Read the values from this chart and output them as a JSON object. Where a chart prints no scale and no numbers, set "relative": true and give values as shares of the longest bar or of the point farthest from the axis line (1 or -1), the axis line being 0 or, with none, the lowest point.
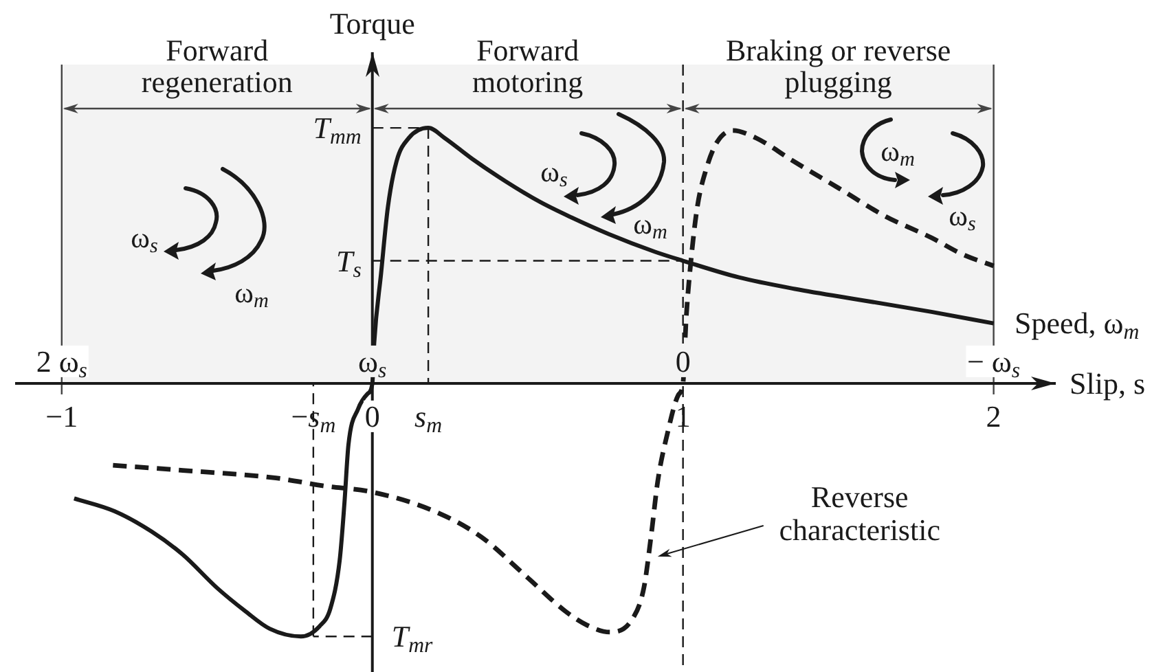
{
  "chart_data": {
    "type": "line",
    "ylabel": "Torque",
    "xlabel": "Slip, s",
    "x2label": "Speed, ω$_{m}$",
    "relative": true,
    "marker": "none",
    "xlim": [
      -1.15,
      2.2
    ],
    "xticks": [
      -1,
      0,
      1,
      2
    ],
    "x2lim": [
      2.15,
      -1.2
    ],
    "x2ticks": [
      {
        "value": 2,
        "label": "2 ω$_{s}$"
      },
      {
        "value": 1,
        "label": "ω$_{s}$"
      },
      0,
      {
        "value": -1,
        "label": "− ω$_{s}$"
      }
    ],
    "series": [
      {
        "color": "#1a1a1a",
        "line_style": "solid",
        "x": [
          -0.96,
          -0.83,
          -0.71,
          -0.61,
          -0.5,
          -0.41,
          -0.33,
          -0.23,
          -0.17,
          -0.135,
          -0.105,
          -0.09,
          -0.077,
          -0.046,
          -0.015,
          0,
          0.006,
          0.028,
          0.05,
          0.078,
          0.117,
          0.18,
          0.233,
          0.32,
          0.43,
          0.54,
          0.64,
          0.76,
          0.91,
          1,
          1.18,
          1.36,
          1.58,
          1.8,
          2
        ],
        "values": [
          -0.45,
          -0.5,
          -0.58,
          -0.67,
          -0.8,
          -0.89,
          -0.96,
          -0.99,
          -0.95,
          -0.88,
          -0.69,
          -0.47,
          -0.24,
          -0.1,
          -0.04,
          0,
          0.16,
          0.43,
          0.69,
          0.87,
          0.96,
          1,
          0.96,
          0.88,
          0.79,
          0.71,
          0.65,
          0.585,
          0.515,
          0.48,
          0.415,
          0.37,
          0.325,
          0.28,
          0.235
        ]
      },
      {
        "color": "#1a1a1a",
        "line_style": "dashed",
        "x": [
          -0.835,
          -0.61,
          -0.31,
          -0.16,
          0,
          0.2,
          0.35,
          0.5,
          0.62,
          0.69,
          0.765,
          0.838,
          0.874,
          0.897,
          0.919,
          0.949,
          0.985,
          1,
          1.01,
          1.024,
          1.046,
          1.075,
          1.11,
          1.16,
          1.236,
          1.355,
          1.5,
          1.65,
          1.8,
          1.9,
          2
        ],
        "values": [
          -0.32,
          -0.34,
          -0.37,
          -0.4,
          -0.425,
          -0.5,
          -0.6,
          -0.76,
          -0.89,
          -0.945,
          -0.973,
          -0.92,
          -0.8,
          -0.6,
          -0.38,
          -0.2,
          -0.045,
          0,
          0.25,
          0.46,
          0.69,
          0.84,
          0.945,
          0.99,
          0.96,
          0.87,
          0.765,
          0.655,
          0.57,
          0.505,
          0.46
        ]
      }
    ],
    "bands": [
      {
        "axis": "x",
        "from": -1,
        "to": 0,
        "label": "Forward\nregeneration",
        "color": "#f3f3f3"
      },
      {
        "axis": "x",
        "from": 0,
        "to": 1,
        "label": "Forward\nmotoring",
        "color": "#f3f3f3"
      },
      {
        "axis": "x",
        "from": 1,
        "to": 2,
        "label": "Braking or reverse\nplugging",
        "color": "#f3f3f3"
      }
    ],
    "ref_lines": [
      {
        "axis": "x",
        "value": -1,
        "color": "#444444"
      },
      {
        "axis": "x",
        "value": 1,
        "line_style": "dashed"
      },
      {
        "axis": "x",
        "value": 2,
        "color": "#444444"
      },
      {
        "axis": "x",
        "value": -0.19,
        "label": "−s$_{m}$",
        "line_style": "dashed"
      },
      {
        "axis": "x",
        "value": 0.18,
        "label": "s$_{m}$",
        "line_style": "dashed"
      }
    ],
    "annotations": [
      {
        "text": "T$_{mm}$",
        "x": 0.18,
        "y": 1
      },
      {
        "text": "T$_{s}$",
        "x": 1,
        "y": 0.48
      },
      {
        "text": "T$_{mr}$",
        "x": -0.19,
        "y": -0.99
      },
      {
        "text": "Reverse\ncharacteristic",
        "x": 0.905,
        "y": -0.68
      },
      "ω$_{s}$",
      "ω$_{m}$",
      "ω$_{s}$",
      "ω$_{m}$",
      "ω$_{m}$",
      "ω$_{s}$"
    ]
  }
}
